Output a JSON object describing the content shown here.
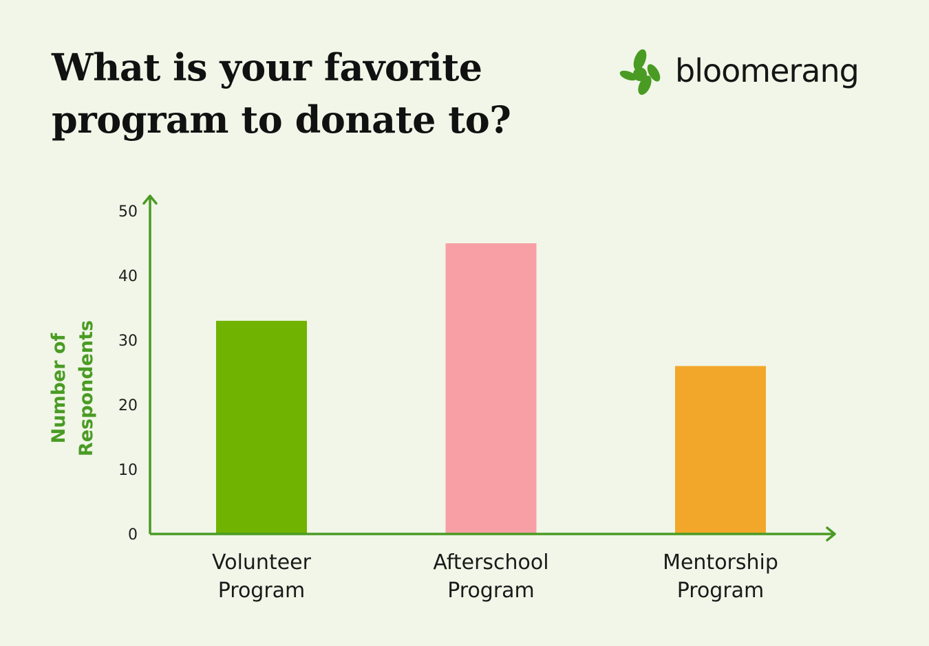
{
  "title_lines": [
    "What is your favorite",
    "program to donate to?"
  ],
  "brand": {
    "name": "bloomerang",
    "color": "#4a9b24"
  },
  "chart_data": {
    "type": "bar",
    "title": "What is your favorite program to donate to?",
    "xlabel": "",
    "ylabel_lines": [
      "Number of",
      "Respondents"
    ],
    "categories": [
      [
        "Volunteer",
        "Program"
      ],
      [
        "Afterschool",
        "Program"
      ],
      [
        "Mentorship",
        "Program"
      ]
    ],
    "values": [
      33,
      45,
      26
    ],
    "colors": [
      "#70b300",
      "#f89fa5",
      "#f2a72b"
    ],
    "ylim": [
      0,
      50
    ],
    "yticks": [
      0,
      10,
      20,
      30,
      40,
      50
    ],
    "axis_color": "#4a9b24",
    "grid": false,
    "legend": "none"
  }
}
